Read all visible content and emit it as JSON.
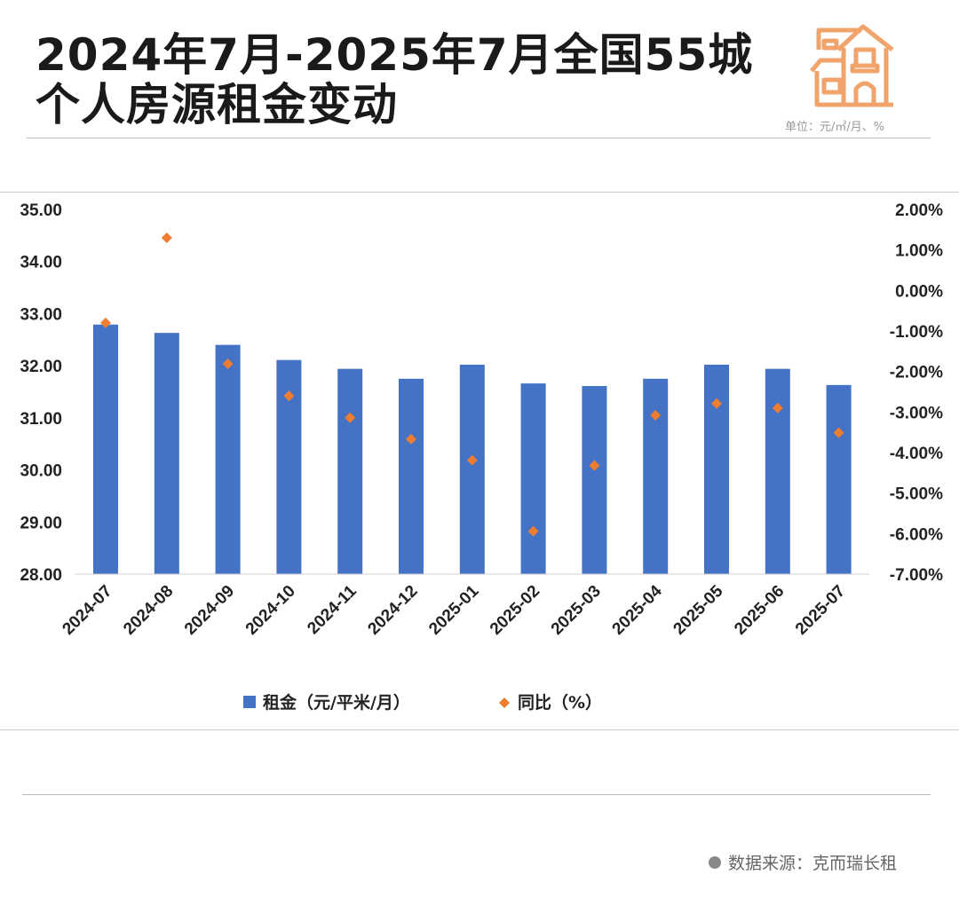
{
  "header": {
    "title_line1": "2024年7月-2025年7月全国55城",
    "title_line2": "个人房源租金变动",
    "unit": "单位：元/㎡/月、%",
    "icon": "house-icon"
  },
  "source": {
    "label": "数据来源：克而瑞长租"
  },
  "colors": {
    "bar": "#4472C4",
    "point": "#ED7D31",
    "house": "#F0A46C"
  },
  "chart_data": {
    "type": "bar",
    "categories": [
      "2024-07",
      "2024-08",
      "2024-09",
      "2024-10",
      "2024-11",
      "2024-12",
      "2025-01",
      "2025-02",
      "2025-03",
      "2025-04",
      "2025-05",
      "2025-06",
      "2025-07"
    ],
    "series": [
      {
        "name": "租金（元/平米/月）",
        "type": "bar",
        "axis": "left",
        "values": [
          32.79,
          32.63,
          32.4,
          32.11,
          31.94,
          31.75,
          32.02,
          31.66,
          31.61,
          31.75,
          32.02,
          31.94,
          31.63
        ]
      },
      {
        "name": "同比（%）",
        "type": "scatter",
        "axis": "right",
        "values": [
          -0.8,
          1.3,
          -1.81,
          -2.6,
          -3.14,
          -3.67,
          -4.19,
          -5.94,
          -4.32,
          -3.08,
          -2.79,
          -2.9,
          -3.51
        ]
      }
    ],
    "ylim_left": [
      28,
      35
    ],
    "yticks_left": [
      "28.00",
      "29.00",
      "30.00",
      "31.00",
      "32.00",
      "33.00",
      "34.00",
      "35.00"
    ],
    "ylim_right": [
      -7,
      2
    ],
    "yticks_right": [
      "-7.00%",
      "-6.00%",
      "-5.00%",
      "-4.00%",
      "-3.00%",
      "-2.00%",
      "-1.00%",
      "0.00%",
      "1.00%",
      "2.00%"
    ],
    "legend": "bottom",
    "grid": false
  }
}
